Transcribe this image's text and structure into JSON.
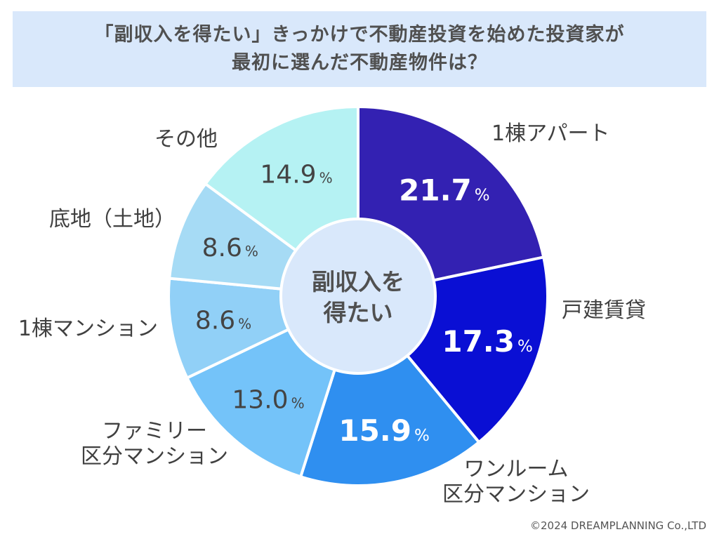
{
  "title": {
    "line1": "「副収入を得たい」きっかけで不動産投資を始めた投資家が",
    "line2": "最初に選んだ不動産物件は？"
  },
  "center_label": {
    "line1": "副収入を",
    "line2": "得たい"
  },
  "copyright": "©2024 DREAMPLANNING Co.,LTD",
  "chart_data": {
    "type": "pie",
    "title": "「副収入を得たい」きっかけで不動産投資を始めた投資家が最初に選んだ不動産物件は？",
    "center_text": "副収入を得たい",
    "unit": "%",
    "slices": [
      {
        "label": [
          "1棟アパート"
        ],
        "value": 21.7,
        "display": "21.7",
        "color": "#3321b2",
        "text_color": "#ffffff"
      },
      {
        "label": [
          "戸建賃貸"
        ],
        "value": 17.3,
        "display": "17.3",
        "color": "#0a0fd4",
        "text_color": "#ffffff"
      },
      {
        "label": [
          "ワンルーム",
          "区分マンション"
        ],
        "value": 15.9,
        "display": "15.9",
        "color": "#2f8ff0",
        "text_color": "#ffffff"
      },
      {
        "label": [
          "ファミリー",
          "区分マンション"
        ],
        "value": 13.0,
        "display": "13.0",
        "color": "#74c3f9",
        "text_color": "#444444"
      },
      {
        "label": [
          "1棟マンション"
        ],
        "value": 8.6,
        "display": "8.6",
        "color": "#91d0f7",
        "text_color": "#444444"
      },
      {
        "label": [
          "底地（土地）"
        ],
        "value": 8.6,
        "display": "8.6",
        "color": "#a6dbf5",
        "text_color": "#444444"
      },
      {
        "label": [
          "その他"
        ],
        "value": 14.9,
        "display": "14.9",
        "color": "#b5f2f3",
        "text_color": "#444444"
      }
    ]
  }
}
